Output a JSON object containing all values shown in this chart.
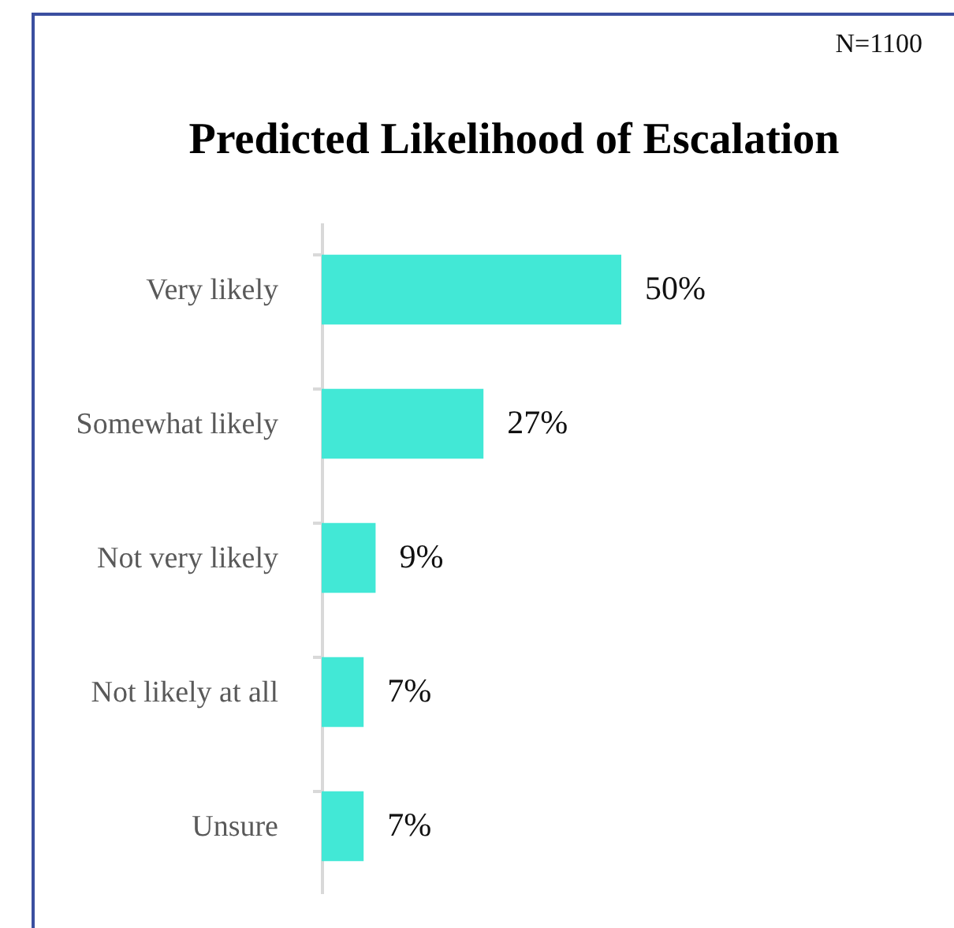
{
  "chart_data": {
    "type": "bar",
    "orientation": "horizontal",
    "title": "Predicted Likelihood of Escalation",
    "annotations": [
      "N=1100"
    ],
    "categories": [
      "Very likely",
      "Somewhat likely",
      "Not very likely",
      "Not likely at all",
      "Unsure"
    ],
    "values": [
      50,
      27,
      9,
      7,
      7
    ],
    "value_labels": [
      "50%",
      "27%",
      "9%",
      "7%",
      "7%"
    ],
    "color": "#42e8d6"
  }
}
